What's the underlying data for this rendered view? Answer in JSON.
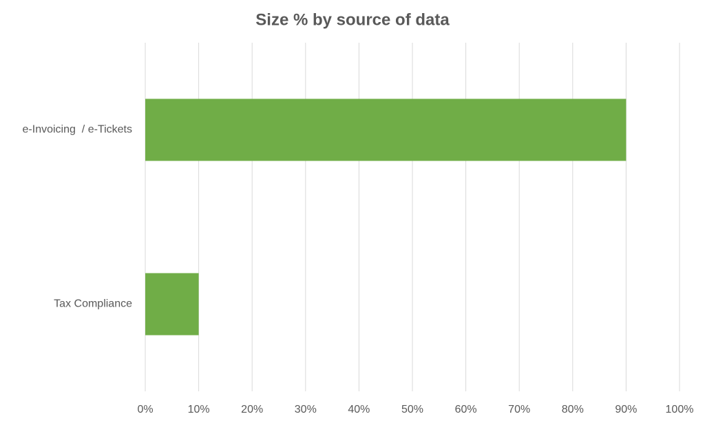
{
  "chart_data": {
    "type": "barh",
    "title": "Size % by source of data",
    "categories": [
      "e-Invoicing  / e-Tickets",
      "Tax Compliance"
    ],
    "values": [
      90,
      10
    ],
    "color": "#70ad47",
    "xlim": [
      0,
      100
    ],
    "xticks": [
      {
        "value": 0,
        "label": "0%"
      },
      {
        "value": 10,
        "label": "10%"
      },
      {
        "value": 20,
        "label": "20%"
      },
      {
        "value": 30,
        "label": "30%"
      },
      {
        "value": 40,
        "label": "40%"
      },
      {
        "value": 50,
        "label": "50%"
      },
      {
        "value": 60,
        "label": "60%"
      },
      {
        "value": 70,
        "label": "70%"
      },
      {
        "value": 80,
        "label": "80%"
      },
      {
        "value": 90,
        "label": "90%"
      },
      {
        "value": 100,
        "label": "100%"
      }
    ],
    "grid": true
  }
}
